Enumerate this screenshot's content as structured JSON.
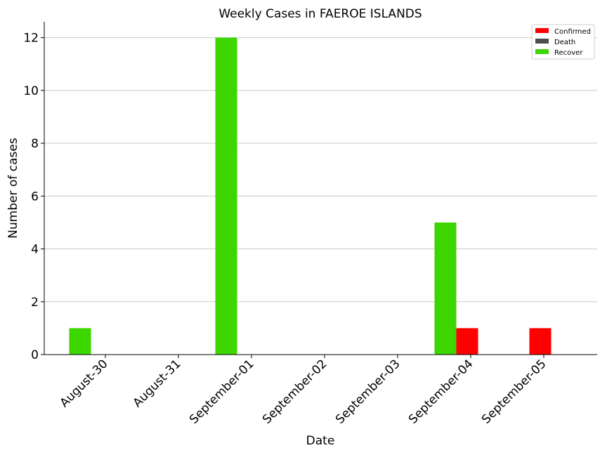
{
  "chart_data": {
    "type": "bar",
    "title": "Weekly Cases in FAEROE ISLANDS",
    "xlabel": "Date",
    "ylabel": "Number of cases",
    "categories": [
      "August-30",
      "August-31",
      "September-01",
      "September-02",
      "September-03",
      "September-04",
      "September-05"
    ],
    "series": [
      {
        "name": "Recover",
        "color": "#3dd600",
        "values": [
          1,
          0,
          12,
          0,
          0,
          5,
          0
        ]
      },
      {
        "name": "Confirmed",
        "color": "#ff0000",
        "values": [
          0,
          0,
          0,
          0,
          0,
          1,
          1
        ]
      },
      {
        "name": "Death",
        "color": "#4d4d4d",
        "values": [
          0,
          0,
          0,
          0,
          0,
          0,
          0
        ]
      }
    ],
    "legend": [
      "Confirmed",
      "Death",
      "Recover"
    ],
    "yticks": [
      0,
      2,
      4,
      6,
      8,
      10,
      12
    ],
    "ylim": [
      0,
      12.6
    ],
    "grid": "horizontal",
    "legend_position": "top-right"
  }
}
